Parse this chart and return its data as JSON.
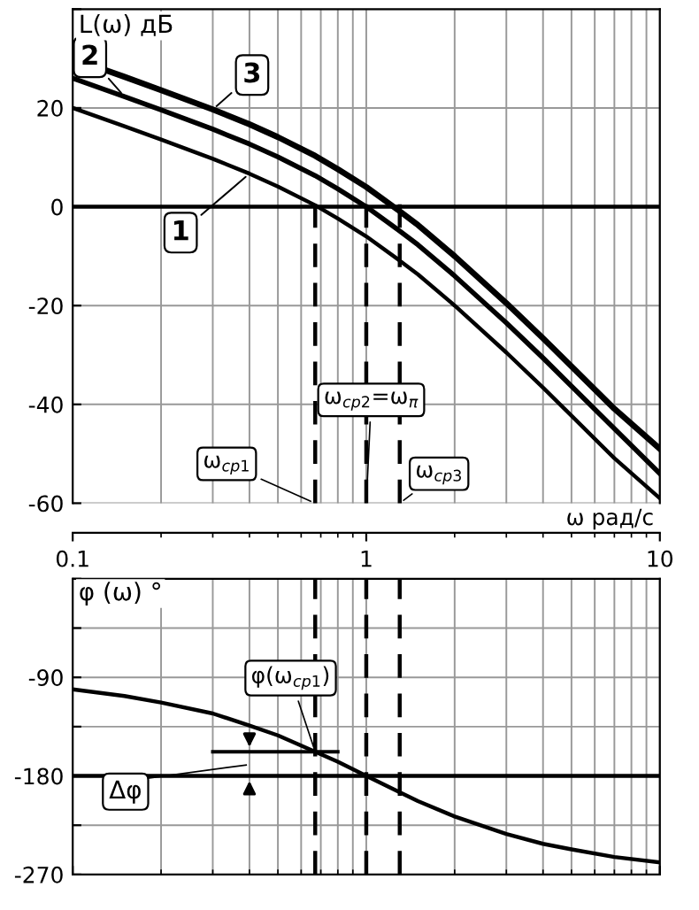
{
  "chart_data": [
    {
      "type": "line",
      "ylabel": "L(ω) дБ",
      "xlabel": "ω рад/с",
      "log": "x",
      "grid": true,
      "legend": false,
      "marker": "none",
      "line_style": "solid",
      "x": [
        0.1,
        0.15,
        0.2,
        0.3,
        0.4,
        0.5,
        0.67,
        0.8,
        1,
        1.3,
        1.5,
        2,
        3,
        4,
        5,
        7,
        10
      ],
      "series": [
        {
          "name": "1",
          "color": "#000000",
          "values": [
            20,
            16.3,
            13.6,
            9.7,
            6.7,
            4.1,
            0.3,
            -2.4,
            -6.0,
            -10.9,
            -13.7,
            -20.0,
            -29.5,
            -36.6,
            -42.3,
            -50.9,
            -59
          ]
        },
        {
          "name": "2",
          "color": "#000000",
          "values": [
            26,
            22.3,
            19.6,
            15.7,
            12.7,
            10.1,
            6.3,
            3.6,
            0,
            -4.9,
            -7.7,
            -14.0,
            -23.5,
            -30.6,
            -36.3,
            -44.9,
            -54
          ]
        },
        {
          "name": "3",
          "color": "#000000",
          "values": [
            30,
            26.3,
            23.6,
            19.7,
            16.7,
            14.1,
            10.3,
            7.6,
            4.0,
            -0.9,
            -3.7,
            -10.0,
            -19.5,
            -26.6,
            -32.3,
            -40.9,
            -49
          ]
        }
      ],
      "xlim": [
        0.1,
        10
      ],
      "xticks": [
        0.1,
        1,
        10
      ],
      "ylim": [
        -60,
        40
      ],
      "yticks": [
        -60,
        -40,
        -20,
        0,
        20,
        {
          "value": 40,
          "label": null
        }
      ],
      "ref_lines": [
        {
          "axis": "y",
          "value": 0,
          "color": "#000000",
          "line_style": "solid"
        },
        {
          "axis": "x",
          "value": 0.67,
          "color": "#000000",
          "line_style": "dashed"
        },
        {
          "axis": "x",
          "value": 1,
          "color": "#000000",
          "line_style": "dashed"
        },
        {
          "axis": "x",
          "value": 1.3,
          "color": "#000000",
          "line_style": "dashed"
        }
      ],
      "annotations": [
        {
          "text": "ω$_{ср1}$",
          "x": 0.67,
          "y": -60
        },
        {
          "text": "ω$_{ср2}$=ω$_{π}$",
          "x": 1,
          "y": -60
        },
        {
          "text": "ω$_{ср3}$",
          "x": 1.3,
          "y": -60
        }
      ]
    },
    {
      "type": "line",
      "ylabel": "φ (ω) °",
      "log": "x",
      "grid": true,
      "legend": false,
      "marker": "none",
      "line_style": "solid",
      "tick_labels": "y",
      "x": [
        0.1,
        0.15,
        0.2,
        0.3,
        0.4,
        0.5,
        0.67,
        0.8,
        1,
        1.3,
        1.5,
        2,
        3,
        4,
        5,
        7,
        10
      ],
      "series": [
        {
          "color": "#000000",
          "values": [
            -101,
            -107,
            -113,
            -123,
            -134,
            -143,
            -158,
            -167,
            -180,
            -195,
            -203,
            -217,
            -233,
            -242,
            -247,
            -254,
            -259
          ]
        }
      ],
      "xlim": [
        0.1,
        10
      ],
      "xticks": [
        0.1,
        1,
        10
      ],
      "ylim": [
        -270,
        0
      ],
      "yticks": [
        -270,
        {
          "value": -225,
          "label": null
        },
        -180,
        {
          "value": -135,
          "label": null
        },
        -90,
        {
          "value": -45,
          "label": null
        },
        {
          "value": 0,
          "label": null
        }
      ],
      "ref_lines": [
        {
          "axis": "y",
          "value": -180,
          "color": "#000000",
          "line_style": "solid"
        },
        {
          "axis": "x",
          "value": 0.67,
          "color": "#000000",
          "line_style": "dashed"
        },
        {
          "axis": "x",
          "value": 1,
          "color": "#000000",
          "line_style": "dashed"
        },
        {
          "axis": "x",
          "value": 1.3,
          "color": "#000000",
          "line_style": "dashed"
        }
      ],
      "annotations": [
        {
          "text": "φ(ω$_{ср1}$)",
          "x": 0.67,
          "y": -158
        },
        "Δφ"
      ]
    }
  ]
}
